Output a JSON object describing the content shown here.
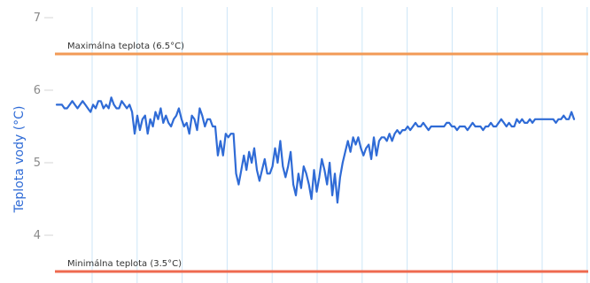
{
  "chart_data": {
    "type": "line",
    "title": "",
    "xlabel": "",
    "ylabel": "Teplota vody (°C)",
    "ylim": [
      3.5,
      7.0
    ],
    "yticks": [
      4,
      5,
      6,
      7
    ],
    "grid": {
      "vertical": true,
      "horizontal": false
    },
    "colors": {
      "series": "#2f6bd6",
      "max_line": "#f29a56",
      "min_line": "#ee6a4f",
      "grid": "#cde6f7",
      "ylabel": "#2f6bd6"
    },
    "reference_lines": [
      {
        "label": "Maximálna teplota (6.5°C)",
        "value": 6.5,
        "color": "#f29a56"
      },
      {
        "label": "Minimálna teplota (3.5°C)",
        "value": 3.5,
        "color": "#ee6a4f"
      }
    ],
    "series": [
      {
        "name": "",
        "values": [
          5.8,
          5.8,
          5.8,
          5.75,
          5.75,
          5.8,
          5.85,
          5.8,
          5.75,
          5.8,
          5.85,
          5.8,
          5.75,
          5.7,
          5.8,
          5.75,
          5.85,
          5.85,
          5.75,
          5.8,
          5.75,
          5.9,
          5.8,
          5.75,
          5.75,
          5.85,
          5.8,
          5.75,
          5.8,
          5.7,
          5.4,
          5.65,
          5.45,
          5.6,
          5.65,
          5.4,
          5.6,
          5.5,
          5.7,
          5.6,
          5.75,
          5.55,
          5.65,
          5.55,
          5.5,
          5.6,
          5.65,
          5.75,
          5.6,
          5.5,
          5.55,
          5.4,
          5.65,
          5.6,
          5.45,
          5.75,
          5.65,
          5.5,
          5.6,
          5.6,
          5.5,
          5.5,
          5.1,
          5.3,
          5.1,
          5.4,
          5.35,
          5.4,
          5.4,
          4.85,
          4.7,
          4.9,
          5.1,
          4.9,
          5.15,
          5.0,
          5.2,
          4.9,
          4.75,
          4.9,
          5.05,
          4.85,
          4.85,
          4.95,
          5.2,
          5.0,
          5.3,
          4.95,
          4.8,
          4.95,
          5.15,
          4.7,
          4.55,
          4.85,
          4.65,
          4.95,
          4.85,
          4.7,
          4.5,
          4.9,
          4.6,
          4.8,
          5.05,
          4.9,
          4.7,
          5.0,
          4.55,
          4.85,
          4.45,
          4.8,
          5.0,
          5.15,
          5.3,
          5.15,
          5.35,
          5.25,
          5.35,
          5.2,
          5.1,
          5.2,
          5.25,
          5.05,
          5.35,
          5.1,
          5.3,
          5.35,
          5.35,
          5.3,
          5.4,
          5.3,
          5.4,
          5.45,
          5.4,
          5.45,
          5.45,
          5.5,
          5.45,
          5.5,
          5.55,
          5.5,
          5.5,
          5.55,
          5.5,
          5.45,
          5.5,
          5.5,
          5.5,
          5.5,
          5.5,
          5.5,
          5.55,
          5.55,
          5.5,
          5.5,
          5.45,
          5.5,
          5.5,
          5.5,
          5.45,
          5.5,
          5.55,
          5.5,
          5.5,
          5.5,
          5.45,
          5.5,
          5.5,
          5.55,
          5.5,
          5.5,
          5.55,
          5.6,
          5.55,
          5.5,
          5.55,
          5.5,
          5.5,
          5.6,
          5.55,
          5.6,
          5.55,
          5.55,
          5.6,
          5.55,
          5.6,
          5.6,
          5.6,
          5.6,
          5.6,
          5.6,
          5.6,
          5.6,
          5.55,
          5.6,
          5.6,
          5.65,
          5.6,
          5.6,
          5.7,
          5.6
        ]
      }
    ]
  }
}
